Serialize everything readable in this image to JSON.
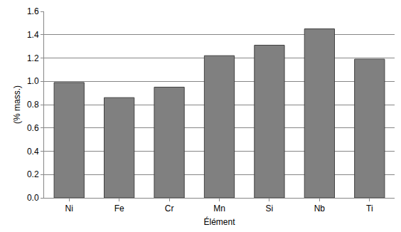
{
  "chart_data": {
    "type": "bar",
    "categories": [
      "Ni",
      "Fe",
      "Cr",
      "Mn",
      "Si",
      "Nb",
      "Ti"
    ],
    "values": [
      0.99,
      0.86,
      0.95,
      1.22,
      1.31,
      1.45,
      1.19
    ],
    "color": "#808080",
    "x_label": "Élément",
    "y_label": "(% mass.)",
    "ylim": [
      0,
      1.6
    ],
    "yticks": [
      {
        "value": 0,
        "label": "0.0"
      },
      0.2,
      0.4,
      0.6,
      0.8,
      {
        "value": 1,
        "label": "1.0"
      },
      1.2,
      1.4,
      1.6
    ],
    "grid": true
  }
}
